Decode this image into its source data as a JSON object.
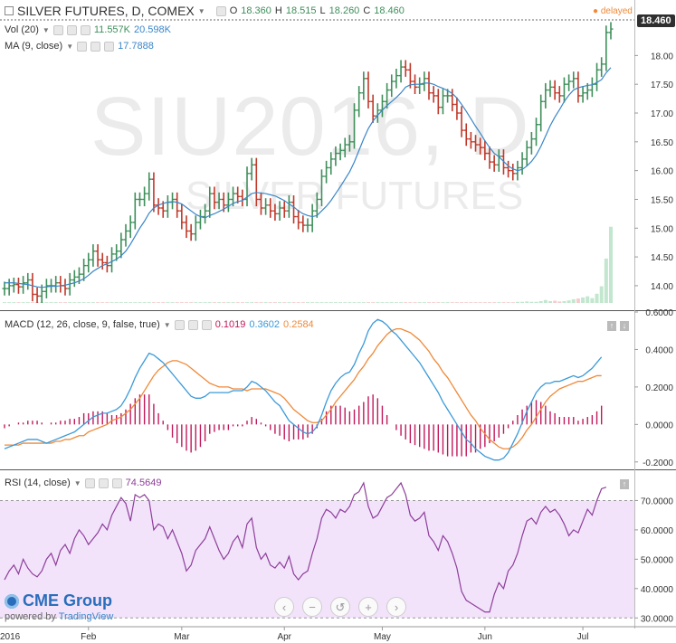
{
  "header": {
    "symbol": "SILVER FUTURES, D, COMEX",
    "o_label": "O",
    "o_val": "18.360",
    "h_label": "H",
    "h_val": "18.515",
    "l_label": "L",
    "l_val": "18.260",
    "c_label": "C",
    "c_val": "18.460",
    "delayed": "delayed",
    "last_price": "18.460"
  },
  "vol_legend": {
    "label": "Vol (20)",
    "v1": "11.557K",
    "v2": "20.598K"
  },
  "ma_legend": {
    "label": "MA (9, close)",
    "v1": "17.7888"
  },
  "macd_legend": {
    "label": "MACD (12, 26, close, 9, false, true)",
    "v1": "0.1019",
    "v2": "0.3602",
    "v3": "0.2584"
  },
  "rsi_legend": {
    "label": "RSI (14, close)",
    "v1": "74.5649"
  },
  "watermark": {
    "line1": "SIU2016, D",
    "line2": "SILVER FUTURES"
  },
  "branding": {
    "name": "CME Group",
    "powered": "powered by",
    "tv": "TradingView"
  },
  "controls": {
    "back": "‹",
    "zoom_out": "−",
    "reset": "↺",
    "zoom_in": "+",
    "forward": "›"
  },
  "colors": {
    "up": "#3f8f5b",
    "down": "#c0392b",
    "ma": "#3a86c8",
    "macd": "#3b9ad9",
    "signal": "#ef8a3a",
    "hist": "#c2185b",
    "rsi": "#8e3e9a",
    "rsi_band": "#f2e3fb"
  },
  "chart_data": [
    {
      "type": "candlestick",
      "title": "SILVER FUTURES, D, COMEX",
      "y_ticks": [
        14.0,
        14.5,
        15.0,
        15.5,
        16.0,
        16.5,
        17.0,
        17.5,
        18.0
      ],
      "ylim": [
        13.7,
        18.65
      ],
      "x_ticks": [
        "2016",
        "Feb",
        "Mar",
        "Apr",
        "May",
        "Jun",
        "Jul"
      ],
      "close": [
        13.95,
        14.0,
        14.02,
        13.98,
        14.05,
        14.1,
        13.85,
        13.82,
        13.9,
        14.0,
        14.0,
        14.05,
        14.0,
        13.95,
        14.1,
        14.15,
        14.2,
        14.35,
        14.45,
        14.6,
        14.45,
        14.4,
        14.35,
        14.55,
        14.6,
        14.8,
        14.95,
        15.1,
        15.5,
        15.5,
        15.6,
        15.85,
        15.4,
        15.35,
        15.3,
        15.45,
        15.5,
        15.3,
        15.1,
        14.95,
        14.9,
        15.1,
        15.2,
        15.3,
        15.6,
        15.45,
        15.5,
        15.4,
        15.5,
        15.6,
        15.55,
        15.5,
        15.95,
        16.1,
        15.5,
        15.35,
        15.4,
        15.3,
        15.25,
        15.35,
        15.3,
        15.45,
        15.2,
        15.1,
        15.05,
        15.05,
        15.3,
        15.5,
        15.9,
        16.05,
        16.2,
        16.3,
        16.35,
        16.45,
        16.5,
        17.05,
        17.35,
        17.6,
        17.2,
        16.95,
        17.05,
        17.2,
        17.4,
        17.55,
        17.65,
        17.8,
        17.75,
        17.55,
        17.45,
        17.5,
        17.6,
        17.35,
        17.3,
        17.1,
        17.3,
        17.3,
        17.15,
        17.0,
        16.7,
        16.55,
        16.5,
        16.45,
        16.4,
        16.3,
        16.15,
        16.1,
        16.25,
        16.05,
        16.0,
        15.95,
        16.05,
        16.2,
        16.4,
        16.55,
        16.8,
        17.2,
        17.4,
        17.45,
        17.35,
        17.3,
        17.5,
        17.55,
        17.6,
        17.3,
        17.35,
        17.4,
        17.5,
        17.75,
        17.85,
        18.4,
        18.46
      ],
      "ma": [
        14.05,
        14.05,
        14.05,
        14.04,
        14.03,
        14.02,
        14.0,
        13.98,
        13.97,
        13.98,
        13.99,
        13.99,
        14.0,
        14.01,
        14.03,
        14.05,
        14.08,
        14.12,
        14.18,
        14.25,
        14.3,
        14.35,
        14.38,
        14.42,
        14.46,
        14.52,
        14.6,
        14.72,
        14.86,
        15.0,
        15.12,
        15.26,
        15.35,
        15.4,
        15.43,
        15.45,
        15.46,
        15.45,
        15.42,
        15.36,
        15.3,
        15.24,
        15.2,
        15.18,
        15.22,
        15.25,
        15.29,
        15.33,
        15.38,
        15.43,
        15.46,
        15.48,
        15.54,
        15.6,
        15.62,
        15.61,
        15.6,
        15.58,
        15.56,
        15.52,
        15.48,
        15.42,
        15.37,
        15.3,
        15.25,
        15.22,
        15.2,
        15.22,
        15.3,
        15.38,
        15.48,
        15.6,
        15.72,
        15.85,
        15.98,
        16.15,
        16.35,
        16.55,
        16.73,
        16.86,
        16.96,
        17.05,
        17.13,
        17.2,
        17.27,
        17.35,
        17.45,
        17.49,
        17.5,
        17.5,
        17.52,
        17.52,
        17.5,
        17.46,
        17.43,
        17.39,
        17.34,
        17.26,
        17.15,
        17.03,
        16.9,
        16.77,
        16.65,
        16.52,
        16.4,
        16.3,
        16.24,
        16.16,
        16.08,
        16.03,
        16.0,
        16.02,
        16.08,
        16.16,
        16.27,
        16.42,
        16.6,
        16.78,
        16.93,
        17.06,
        17.2,
        17.31,
        17.4,
        17.44,
        17.46,
        17.48,
        17.49,
        17.53,
        17.58,
        17.7,
        17.79
      ]
    },
    {
      "type": "bar",
      "title": "Vol (20)",
      "values": [
        0.2,
        0.2,
        0.2,
        0.2,
        0.2,
        0.2,
        0.2,
        0.2,
        0.2,
        0.2,
        0.2,
        0.2,
        0.2,
        0.2,
        0.2,
        0.2,
        0.2,
        0.2,
        0.2,
        0.2,
        0.2,
        0.2,
        0.2,
        0.2,
        0.2,
        0.2,
        0.2,
        0.2,
        0.2,
        0.2,
        0.2,
        0.2,
        0.2,
        0.2,
        0.2,
        0.2,
        0.2,
        0.2,
        0.2,
        0.2,
        0.2,
        0.2,
        0.2,
        0.2,
        0.2,
        0.2,
        0.2,
        0.2,
        0.2,
        0.2,
        0.2,
        0.2,
        0.2,
        0.2,
        0.2,
        0.2,
        0.2,
        0.2,
        0.2,
        0.2,
        0.2,
        0.2,
        0.2,
        0.2,
        0.2,
        0.2,
        0.2,
        0.2,
        0.2,
        0.2,
        0.2,
        0.2,
        0.2,
        0.2,
        0.2,
        0.2,
        0.2,
        0.2,
        0.2,
        0.2,
        0.2,
        0.2,
        0.2,
        0.2,
        0.2,
        0.2,
        0.2,
        0.2,
        0.2,
        0.2,
        0.2,
        0.2,
        0.2,
        0.2,
        0.2,
        0.2,
        0.2,
        0.2,
        0.2,
        0.2,
        0.2,
        0.2,
        0.2,
        0.2,
        0.2,
        0.2,
        0.2,
        0.2,
        0.2,
        0.2,
        0.3,
        0.3,
        0.4,
        0.3,
        0.3,
        0.5,
        0.8,
        0.5,
        0.6,
        0.4,
        0.5,
        0.7,
        1.0,
        1.2,
        1.5,
        1.8,
        1.3,
        2.5,
        4.5,
        12.0,
        20.6
      ]
    },
    {
      "type": "line",
      "title": "MACD (12, 26, close, 9, false, true)",
      "y_ticks": [
        -0.2,
        0.0,
        0.2,
        0.4,
        0.6
      ],
      "ylim": [
        -0.23,
        0.6
      ],
      "series": [
        {
          "name": "MACD",
          "values": [
            -0.13,
            -0.12,
            -0.11,
            -0.1,
            -0.09,
            -0.08,
            -0.08,
            -0.08,
            -0.09,
            -0.1,
            -0.09,
            -0.08,
            -0.07,
            -0.06,
            -0.05,
            -0.04,
            -0.02,
            0.0,
            0.02,
            0.04,
            0.05,
            0.06,
            0.06,
            0.07,
            0.08,
            0.1,
            0.14,
            0.19,
            0.25,
            0.3,
            0.34,
            0.38,
            0.37,
            0.35,
            0.33,
            0.3,
            0.27,
            0.24,
            0.21,
            0.18,
            0.15,
            0.14,
            0.14,
            0.15,
            0.17,
            0.17,
            0.17,
            0.17,
            0.17,
            0.18,
            0.18,
            0.18,
            0.2,
            0.23,
            0.22,
            0.2,
            0.18,
            0.15,
            0.12,
            0.1,
            0.06,
            0.02,
            0.0,
            -0.02,
            -0.04,
            -0.05,
            -0.04,
            -0.01,
            0.05,
            0.12,
            0.18,
            0.22,
            0.25,
            0.27,
            0.28,
            0.32,
            0.38,
            0.43,
            0.5,
            0.54,
            0.56,
            0.55,
            0.53,
            0.5,
            0.48,
            0.45,
            0.42,
            0.39,
            0.36,
            0.33,
            0.29,
            0.25,
            0.21,
            0.17,
            0.12,
            0.08,
            0.04,
            0.0,
            -0.04,
            -0.08,
            -0.1,
            -0.13,
            -0.15,
            -0.17,
            -0.18,
            -0.19,
            -0.19,
            -0.18,
            -0.15,
            -0.1,
            -0.05,
            0.01,
            0.07,
            0.12,
            0.17,
            0.2,
            0.22,
            0.22,
            0.23,
            0.23,
            0.24,
            0.25,
            0.26,
            0.25,
            0.26,
            0.28,
            0.3,
            0.33,
            0.36
          ]
        },
        {
          "name": "Signal",
          "values": [
            -0.11,
            -0.11,
            -0.11,
            -0.11,
            -0.1,
            -0.1,
            -0.1,
            -0.1,
            -0.1,
            -0.1,
            -0.1,
            -0.09,
            -0.09,
            -0.08,
            -0.08,
            -0.07,
            -0.06,
            -0.06,
            -0.04,
            -0.03,
            -0.02,
            -0.01,
            0.0,
            0.02,
            0.03,
            0.04,
            0.06,
            0.08,
            0.11,
            0.14,
            0.18,
            0.22,
            0.26,
            0.29,
            0.31,
            0.33,
            0.34,
            0.34,
            0.33,
            0.32,
            0.3,
            0.28,
            0.26,
            0.24,
            0.22,
            0.21,
            0.2,
            0.2,
            0.2,
            0.19,
            0.19,
            0.19,
            0.18,
            0.19,
            0.19,
            0.19,
            0.19,
            0.18,
            0.17,
            0.16,
            0.14,
            0.11,
            0.08,
            0.06,
            0.04,
            0.02,
            0.01,
            0.01,
            0.02,
            0.05,
            0.08,
            0.12,
            0.15,
            0.18,
            0.21,
            0.24,
            0.28,
            0.31,
            0.35,
            0.38,
            0.42,
            0.45,
            0.48,
            0.5,
            0.51,
            0.51,
            0.5,
            0.49,
            0.47,
            0.45,
            0.42,
            0.39,
            0.35,
            0.32,
            0.28,
            0.25,
            0.21,
            0.17,
            0.13,
            0.09,
            0.05,
            0.02,
            -0.02,
            -0.05,
            -0.08,
            -0.1,
            -0.12,
            -0.13,
            -0.13,
            -0.12,
            -0.1,
            -0.07,
            -0.03,
            0.0,
            0.04,
            0.08,
            0.12,
            0.15,
            0.17,
            0.19,
            0.2,
            0.21,
            0.22,
            0.23,
            0.23,
            0.24,
            0.25,
            0.26,
            0.26
          ]
        },
        {
          "name": "Histogram",
          "values": [
            -0.02,
            -0.01,
            0.0,
            0.01,
            0.01,
            0.02,
            0.02,
            0.02,
            0.01,
            0.0,
            0.01,
            0.01,
            0.02,
            0.02,
            0.03,
            0.03,
            0.04,
            0.06,
            0.06,
            0.07,
            0.07,
            0.07,
            0.06,
            0.05,
            0.05,
            0.06,
            0.08,
            0.11,
            0.14,
            0.16,
            0.16,
            0.16,
            0.11,
            0.06,
            0.02,
            -0.03,
            -0.07,
            -0.1,
            -0.12,
            -0.14,
            -0.15,
            -0.14,
            -0.12,
            -0.09,
            -0.05,
            -0.04,
            -0.03,
            -0.03,
            -0.03,
            -0.01,
            -0.01,
            -0.01,
            0.02,
            0.04,
            0.03,
            0.01,
            -0.01,
            -0.03,
            -0.05,
            -0.06,
            -0.08,
            -0.09,
            -0.08,
            -0.08,
            -0.08,
            -0.07,
            -0.05,
            -0.02,
            0.03,
            0.07,
            0.1,
            0.1,
            0.1,
            0.09,
            0.07,
            0.08,
            0.1,
            0.12,
            0.15,
            0.16,
            0.14,
            0.1,
            0.05,
            0.0,
            -0.03,
            -0.06,
            -0.08,
            -0.1,
            -0.11,
            -0.12,
            -0.13,
            -0.14,
            -0.14,
            -0.15,
            -0.16,
            -0.17,
            -0.17,
            -0.17,
            -0.17,
            -0.17,
            -0.15,
            -0.15,
            -0.13,
            -0.12,
            -0.1,
            -0.09,
            -0.07,
            -0.05,
            -0.02,
            0.02,
            0.05,
            0.08,
            0.1,
            0.12,
            0.13,
            0.12,
            0.1,
            0.07,
            0.06,
            0.04,
            0.04,
            0.04,
            0.04,
            0.02,
            0.03,
            0.04,
            0.05,
            0.07,
            0.1
          ]
        }
      ]
    },
    {
      "type": "line",
      "title": "RSI (14, close)",
      "y_ticks": [
        30,
        40,
        50,
        60,
        70
      ],
      "ylim": [
        27,
        80
      ],
      "band": [
        30,
        70
      ],
      "series": [
        {
          "name": "RSI",
          "values": [
            43,
            46,
            48,
            45,
            50,
            47,
            45,
            44,
            46,
            50,
            52,
            48,
            53,
            55,
            52,
            57,
            60,
            58,
            55,
            57,
            59,
            62,
            60,
            65,
            68,
            71,
            69,
            63,
            72,
            71,
            72,
            70,
            60,
            62,
            61,
            57,
            60,
            56,
            52,
            46,
            48,
            53,
            55,
            57,
            61,
            57,
            53,
            50,
            52,
            56,
            58,
            54,
            62,
            64,
            54,
            50,
            52,
            48,
            47,
            49,
            47,
            51,
            45,
            43,
            45,
            46,
            52,
            57,
            64,
            67,
            66,
            64,
            67,
            66,
            68,
            72,
            73,
            76,
            68,
            64,
            65,
            68,
            71,
            72,
            74,
            76,
            72,
            65,
            63,
            64,
            66,
            58,
            56,
            53,
            58,
            56,
            52,
            47,
            39,
            36,
            35,
            34,
            33,
            32,
            32,
            38,
            42,
            40,
            46,
            48,
            52,
            58,
            63,
            64,
            62,
            66,
            68,
            66,
            67,
            65,
            62,
            58,
            60,
            59,
            63,
            67,
            65,
            70,
            74,
            74.56
          ]
        }
      ]
    }
  ]
}
